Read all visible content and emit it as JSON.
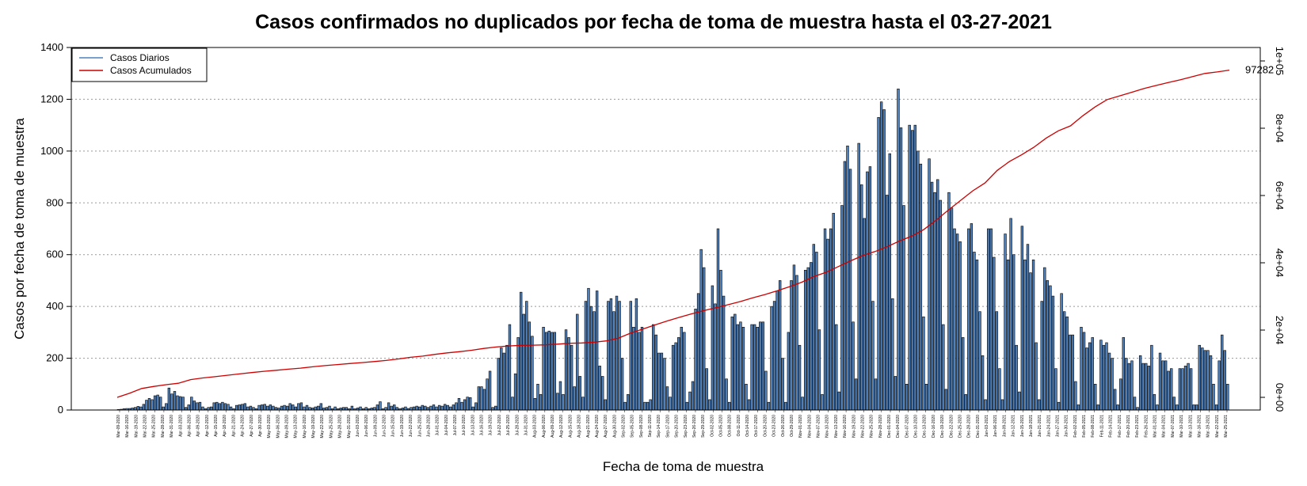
{
  "chart_data": {
    "type": "bar",
    "title": "Casos confirmados no duplicados por fecha de toma de muestra hasta el 03-27-2021",
    "xlabel": "Fecha de toma de muestra",
    "ylabel": "Casos por fecha de toma de muestra",
    "ylim": [
      0,
      1400
    ],
    "yticks": [
      "0",
      "200",
      "400",
      "600",
      "800",
      "1000",
      "1200",
      "1400"
    ],
    "y2lim": [
      0,
      100000
    ],
    "y2ticks": [
      "0e+00",
      "2e+04",
      "4e+04",
      "6e+04",
      "8e+04",
      "1e+05"
    ],
    "grid": "horizontal dotted",
    "legend_position": "top-left",
    "start_date": "Mar-09-2020",
    "end_date": "Mar-25-2021",
    "x_tick_labels": [
      "Mar-09-2020",
      "Mar-16-2020",
      "Mar-19-2020",
      "Mar-22-2020",
      "Mar-25-2020",
      "Mar-28-2020",
      "Mar-31-2020",
      "Apr-03-2020",
      "Apr-06-2020",
      "Apr-09-2020",
      "Apr-12-2020",
      "Apr-15-2020",
      "Apr-18-2020",
      "Apr-21-2020",
      "Apr-24-2020",
      "Apr-27-2020",
      "Apr-30-2020",
      "May-03-2020",
      "May-06-2020",
      "May-09-2020",
      "May-13-2020",
      "May-16-2020",
      "May-19-2020",
      "May-22-2020",
      "May-25-2020",
      "May-28-2020",
      "May-31-2020",
      "Jun-03-2020",
      "Jun-06-2020",
      "Jun-09-2020",
      "Jun-12-2020",
      "Jun-15-2020",
      "Jun-19-2020",
      "Jun-22-2020",
      "Jun-25-2020",
      "Jun-28-2020",
      "Jul-01-2020",
      "Jul-04-2020",
      "Jul-07-2020",
      "Jul-10-2020",
      "Jul-13-2020",
      "Jul-16-2020",
      "Jul-19-2020",
      "Jul-22-2020",
      "Jul-25-2020",
      "Jul-28-2020",
      "Jul-31-2020",
      "Aug-03-2020",
      "Aug-06-2020",
      "Aug-09-2020",
      "Aug-12-2020",
      "Aug-15-2020",
      "Aug-18-2020",
      "Aug-21-2020",
      "Aug-24-2020",
      "Aug-27-2020",
      "Aug-30-2020",
      "Sep-02-2020",
      "Sep-05-2020",
      "Sep-08-2020",
      "Sep-11-2020",
      "Sep-14-2020",
      "Sep-17-2020",
      "Sep-20-2020",
      "Sep-23-2020",
      "Sep-26-2020",
      "Sep-29-2020",
      "Oct-02-2020",
      "Oct-05-2020",
      "Oct-08-2020",
      "Oct-11-2020",
      "Oct-14-2020",
      "Oct-17-2020",
      "Oct-20-2020",
      "Oct-23-2020",
      "Oct-26-2020",
      "Oct-29-2020",
      "Nov-01-2020",
      "Nov-04-2020",
      "Nov-07-2020",
      "Nov-10-2020",
      "Nov-13-2020",
      "Nov-16-2020",
      "Nov-19-2020",
      "Nov-22-2020",
      "Nov-25-2020",
      "Nov-28-2020",
      "Dec-01-2020",
      "Dec-04-2020",
      "Dec-07-2020",
      "Dec-10-2020",
      "Dec-13-2020",
      "Dec-16-2020",
      "Dec-19-2020",
      "Dec-22-2020",
      "Dec-25-2020",
      "Dec-28-2020",
      "Dec-31-2020",
      "Jan-03-2021",
      "Jan-06-2021",
      "Jan-09-2021",
      "Jan-12-2021",
      "Jan-15-2021",
      "Jan-18-2021",
      "Jan-21-2021",
      "Jan-24-2021",
      "Jan-27-2021",
      "Jan-30-2021",
      "Feb-02-2021",
      "Feb-05-2021",
      "Feb-08-2021",
      "Feb-11-2021",
      "Feb-14-2021",
      "Feb-17-2021",
      "Feb-20-2021",
      "Feb-23-2021",
      "Feb-26-2021",
      "Mar-01-2021",
      "Mar-04-2021",
      "Mar-07-2021",
      "Mar-10-2021",
      "Mar-13-2021",
      "Mar-16-2021",
      "Mar-19-2021",
      "Mar-22-2021",
      "Mar-25-2021"
    ],
    "series": [
      {
        "name": "Casos Diarios",
        "color": "#4f81bd",
        "values": [
          2,
          3,
          5,
          6,
          6,
          8,
          10,
          14,
          12,
          22,
          38,
          45,
          40,
          55,
          58,
          50,
          12,
          25,
          85,
          62,
          72,
          55,
          52,
          50,
          10,
          20,
          50,
          35,
          28,
          30,
          12,
          5,
          10,
          12,
          28,
          30,
          25,
          30,
          25,
          22,
          12,
          5,
          18,
          20,
          22,
          25,
          12,
          15,
          10,
          5,
          18,
          20,
          22,
          15,
          20,
          15,
          10,
          8,
          15,
          18,
          15,
          25,
          20,
          12,
          25,
          28,
          12,
          18,
          10,
          8,
          12,
          15,
          25,
          8,
          10,
          15,
          5,
          12,
          5,
          8,
          10,
          10,
          5,
          15,
          5,
          8,
          12,
          5,
          10,
          5,
          8,
          10,
          20,
          32,
          5,
          10,
          28,
          15,
          20,
          10,
          5,
          8,
          12,
          6,
          10,
          12,
          15,
          12,
          18,
          15,
          10,
          15,
          20,
          12,
          18,
          15,
          22,
          18,
          12,
          20,
          28,
          45,
          30,
          40,
          50,
          48,
          12,
          28,
          90,
          90,
          80,
          120,
          150,
          10,
          15,
          200,
          240,
          220,
          250,
          330,
          50,
          140,
          280,
          455,
          370,
          420,
          340,
          285,
          45,
          100,
          60,
          320,
          300,
          305,
          300,
          300,
          65,
          110,
          60,
          310,
          280,
          250,
          90,
          370,
          130,
          50,
          420,
          470,
          400,
          380,
          460,
          170,
          130,
          40,
          420,
          430,
          380,
          440,
          420,
          200,
          30,
          60,
          420,
          320,
          430,
          300,
          320,
          30,
          30,
          40,
          330,
          290,
          220,
          220,
          200,
          90,
          50,
          250,
          260,
          280,
          320,
          300,
          30,
          70,
          110,
          390,
          450,
          620,
          550,
          160,
          40,
          480,
          410,
          700,
          540,
          440,
          120,
          30,
          360,
          370,
          330,
          340,
          320,
          100,
          40,
          330,
          330,
          320,
          340,
          340,
          150,
          30,
          400,
          420,
          460,
          500,
          200,
          30,
          300,
          500,
          560,
          520,
          250,
          50,
          540,
          550,
          570,
          640,
          610,
          310,
          60,
          700,
          660,
          700,
          760,
          330,
          70,
          790,
          960,
          1020,
          930,
          340,
          120,
          1030,
          870,
          740,
          920,
          940,
          420,
          120,
          1130,
          1190,
          1160,
          830,
          990,
          430,
          130,
          1240,
          1090,
          790,
          100,
          1100,
          1080,
          1100,
          1000,
          950,
          360,
          100,
          970,
          880,
          840,
          890,
          810,
          330,
          80,
          840,
          780,
          700,
          680,
          650,
          280,
          60,
          700,
          720,
          610,
          580,
          380,
          210,
          40,
          700,
          700,
          590,
          380,
          160,
          40,
          680,
          580,
          740,
          600,
          250,
          70,
          710,
          580,
          640,
          530,
          580,
          260,
          40,
          420,
          550,
          500,
          480,
          440,
          160,
          30,
          450,
          380,
          360,
          290,
          290,
          110,
          20,
          320,
          300,
          240,
          260,
          280,
          100,
          20,
          270,
          250,
          260,
          220,
          200,
          80,
          20,
          120,
          280,
          200,
          180,
          190,
          50,
          10,
          210,
          180,
          180,
          170,
          250,
          60,
          20,
          220,
          190,
          190,
          150,
          160,
          50,
          20,
          160,
          160,
          170,
          180,
          160,
          20,
          20,
          250,
          240,
          230,
          230,
          210,
          100,
          20,
          190,
          290,
          230,
          100
        ]
      },
      {
        "name": "Casos Acumulados",
        "color": "#cc0000",
        "end_label": "97282",
        "values": [
          0,
          1210,
          2625,
          3240,
          3765,
          4195,
          5275,
          5765,
          6150,
          6560,
          6955,
          7370,
          7730,
          8055,
          8365,
          8675,
          9085,
          9430,
          9740,
          10040,
          10320,
          10625,
          10970,
          11415,
          11905,
          12265,
          12765,
          13215,
          13565,
          13990,
          14535,
          14970,
          15280,
          15465,
          15495,
          15610,
          15820,
          16065,
          16160,
          16385,
          16785,
          17600,
          19080,
          20310,
          21520,
          22715,
          23785,
          24820,
          25790,
          26625,
          27555,
          28485,
          29585,
          30575,
          31680,
          32900,
          34210,
          35905,
          37165,
          38880,
          40555,
          42140,
          43350,
          44770,
          46470,
          47905,
          49900,
          52630,
          55640,
          58510,
          61390,
          63715,
          67450,
          70095,
          72085,
          74330,
          77035,
          79215,
          80700,
          83685,
          86305,
          88510,
          89605,
          90685,
          91790,
          92700,
          93600,
          94420,
          95355,
          96285,
          96725,
          97282
        ],
        "label_dates": "3-day samples from Mar-09-2020 to Mar-25-2021"
      }
    ]
  }
}
